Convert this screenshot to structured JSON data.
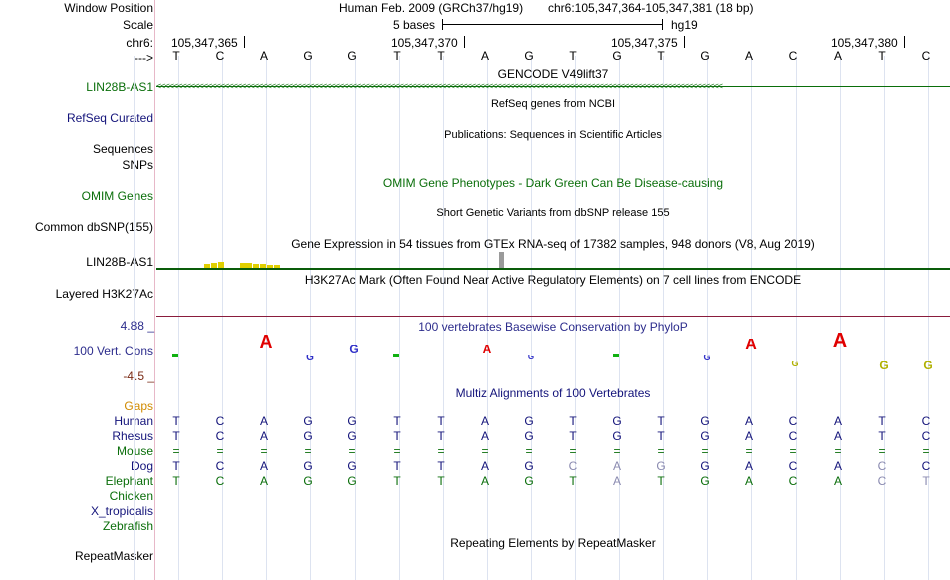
{
  "header": {
    "window_position_label": "Window Position",
    "scale_label": "Scale",
    "chrom_label": "chr6:",
    "strand_label": "--->",
    "assembly": "Human Feb. 2009 (GRCh37/hg19)",
    "position": "chr6:105,347,364-105,347,381 (18 bp)",
    "scale_text": "5 bases",
    "db": "hg19",
    "ruler_ticks": [
      "105,347,365",
      "105,347,370",
      "105,347,375",
      "105,347,380"
    ]
  },
  "bases": [
    "T",
    "C",
    "A",
    "G",
    "G",
    "T",
    "T",
    "A",
    "G",
    "T",
    "G",
    "T",
    "G",
    "A",
    "C",
    "A",
    "T",
    "C"
  ],
  "tracks": {
    "gencode": {
      "label": "LIN28B-AS1",
      "title": "GENCODE V49lift37",
      "arrows": "<<<<<<<<<<<<<<<<<<<<<<<<<<<<<<<<<<<<<<<<<<<<<<<<<<<<<<<<<<<<<<<<<<<<<<<<<<<<<<<<<<<<<<<<<<<<<<<<<<<<<<<<<<<<<<<<<<<<<<<<<<<<<<<<<<<<<",
      "color": "#0a6e0a"
    },
    "refseq": {
      "label": "RefSeq Curated",
      "title": "RefSeq genes from NCBI",
      "color": "#13137a"
    },
    "publications": {
      "title": "Publications: Sequences in Scientific Articles"
    },
    "sequences": {
      "label": "Sequences"
    },
    "snps": {
      "label": "SNPs"
    },
    "omim": {
      "label": "OMIM Genes",
      "title": "OMIM Gene Phenotypes - Dark Green Can Be Disease-causing",
      "color": "#0a6e0a"
    },
    "dbsnp": {
      "label": "Common dbSNP(155)",
      "title": "Short Genetic Variants from dbSNP release 155"
    },
    "gtex": {
      "label": "LIN28B-AS1",
      "title": "Gene Expression in 54 tissues from GTEx RNA-seq of 17382 samples, 948 donors (V8, Aug 2019)"
    },
    "h3k27ac": {
      "label": "Layered H3K27Ac",
      "title": "H3K27Ac Mark (Often Found Near Active Regulatory Elements) on 7 cell lines from ENCODE"
    },
    "phylop": {
      "label": "100 Vert. Cons",
      "title": "100 vertebrates Basewise Conservation by PhyloP",
      "max": "4.88 _",
      "min": "-4.5 _",
      "color": "#2c2c8c",
      "max_color": "#2c2c8c",
      "min_color": "#7a2a14"
    },
    "multiz": {
      "title": "Multiz Alignments of 100 Vertebrates",
      "color": "#13137a"
    },
    "repeatmasker": {
      "label": "RepeatMasker",
      "title": "Repeating Elements by RepeatMasker"
    }
  },
  "alignment": {
    "gaps_label": "Gaps",
    "gaps_color": "#d08a00",
    "species": [
      {
        "name": "Human",
        "color": "#13137a",
        "bases": [
          "T",
          "C",
          "A",
          "G",
          "G",
          "T",
          "T",
          "A",
          "G",
          "T",
          "G",
          "T",
          "G",
          "A",
          "C",
          "A",
          "T",
          "C"
        ]
      },
      {
        "name": "Rhesus",
        "color": "#13137a",
        "bases": [
          "T",
          "C",
          "A",
          "G",
          "G",
          "T",
          "T",
          "A",
          "G",
          "T",
          "G",
          "T",
          "G",
          "A",
          "C",
          "A",
          "T",
          "C"
        ]
      },
      {
        "name": "Mouse",
        "color": "#0a6e0a",
        "bases": [
          "=",
          "=",
          "=",
          "=",
          "=",
          "=",
          "=",
          "=",
          "=",
          "=",
          "=",
          "=",
          "=",
          "=",
          "=",
          "=",
          "=",
          "="
        ]
      },
      {
        "name": "Dog",
        "color": "#13137a",
        "bases": [
          "T",
          "C",
          "A",
          "G",
          "G",
          "T",
          "T",
          "A",
          "G",
          "C",
          "A",
          "G",
          "G",
          "A",
          "C",
          "A",
          "C",
          "C"
        ]
      },
      {
        "name": "Elephant",
        "color": "#0a6e0a",
        "bases": [
          "T",
          "C",
          "A",
          "G",
          "G",
          "T",
          "T",
          "A",
          "G",
          "T",
          "A",
          "T",
          "G",
          "A",
          "C",
          "A",
          "C",
          "T"
        ]
      },
      {
        "name": "Chicken",
        "color": "#0a6e0a",
        "bases": []
      },
      {
        "name": "X_tropicalis",
        "color": "#13137a",
        "bases": []
      },
      {
        "name": "Zebrafish",
        "color": "#0a6e0a",
        "bases": []
      }
    ],
    "mismatch_color": "#8a8ab0"
  },
  "colors": {
    "pink_line": "#8a1c3c",
    "green_line": "#0a5c0a",
    "gtex_bar": "#e0d000",
    "phylop_pos": "#3030c8",
    "phylop_neg": "#b0b000",
    "logo_red": "#e00000",
    "logo_green": "#10b010"
  }
}
